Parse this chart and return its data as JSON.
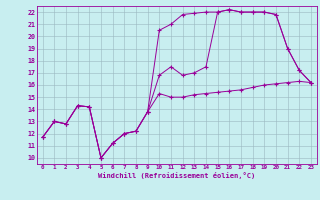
{
  "xlabel": "Windchill (Refroidissement éolien,°C)",
  "bg_color": "#c8eef0",
  "line_color": "#990099",
  "xlim": [
    -0.5,
    23.5
  ],
  "ylim": [
    9.5,
    22.5
  ],
  "xticks": [
    0,
    1,
    2,
    3,
    4,
    5,
    6,
    7,
    8,
    9,
    10,
    11,
    12,
    13,
    14,
    15,
    16,
    17,
    18,
    19,
    20,
    21,
    22,
    23
  ],
  "yticks": [
    10,
    11,
    12,
    13,
    14,
    15,
    16,
    17,
    18,
    19,
    20,
    21,
    22
  ],
  "line1_x": [
    0,
    1,
    2,
    3,
    4,
    5,
    6,
    7,
    8,
    9,
    10,
    11,
    12,
    13,
    14,
    15,
    16,
    17,
    18,
    19,
    20,
    21,
    22,
    23
  ],
  "line1_y": [
    11.7,
    13.0,
    12.8,
    14.3,
    14.2,
    10.0,
    11.2,
    12.0,
    12.2,
    13.8,
    15.3,
    15.0,
    15.0,
    15.2,
    15.3,
    15.4,
    15.5,
    15.6,
    15.8,
    16.0,
    16.1,
    16.2,
    16.3,
    16.2
  ],
  "line2_x": [
    0,
    1,
    2,
    3,
    4,
    5,
    6,
    7,
    8,
    9,
    10,
    11,
    12,
    13,
    14,
    15,
    16,
    17,
    18,
    19,
    20,
    21,
    22,
    23
  ],
  "line2_y": [
    11.7,
    13.0,
    12.8,
    14.3,
    14.2,
    10.0,
    11.2,
    12.0,
    12.2,
    13.8,
    20.5,
    21.0,
    21.8,
    21.9,
    22.0,
    22.0,
    22.2,
    22.0,
    22.0,
    22.0,
    21.8,
    19.0,
    17.2,
    16.2
  ],
  "line3_x": [
    0,
    1,
    2,
    3,
    4,
    5,
    6,
    7,
    8,
    9,
    10,
    11,
    12,
    13,
    14,
    15,
    16,
    17,
    18,
    19,
    20,
    21,
    22,
    23
  ],
  "line3_y": [
    11.7,
    13.0,
    12.8,
    14.3,
    14.2,
    10.0,
    11.2,
    12.0,
    12.2,
    13.8,
    16.8,
    17.5,
    16.8,
    17.0,
    17.5,
    22.0,
    22.2,
    22.0,
    22.0,
    22.0,
    21.8,
    19.0,
    17.2,
    16.2
  ]
}
